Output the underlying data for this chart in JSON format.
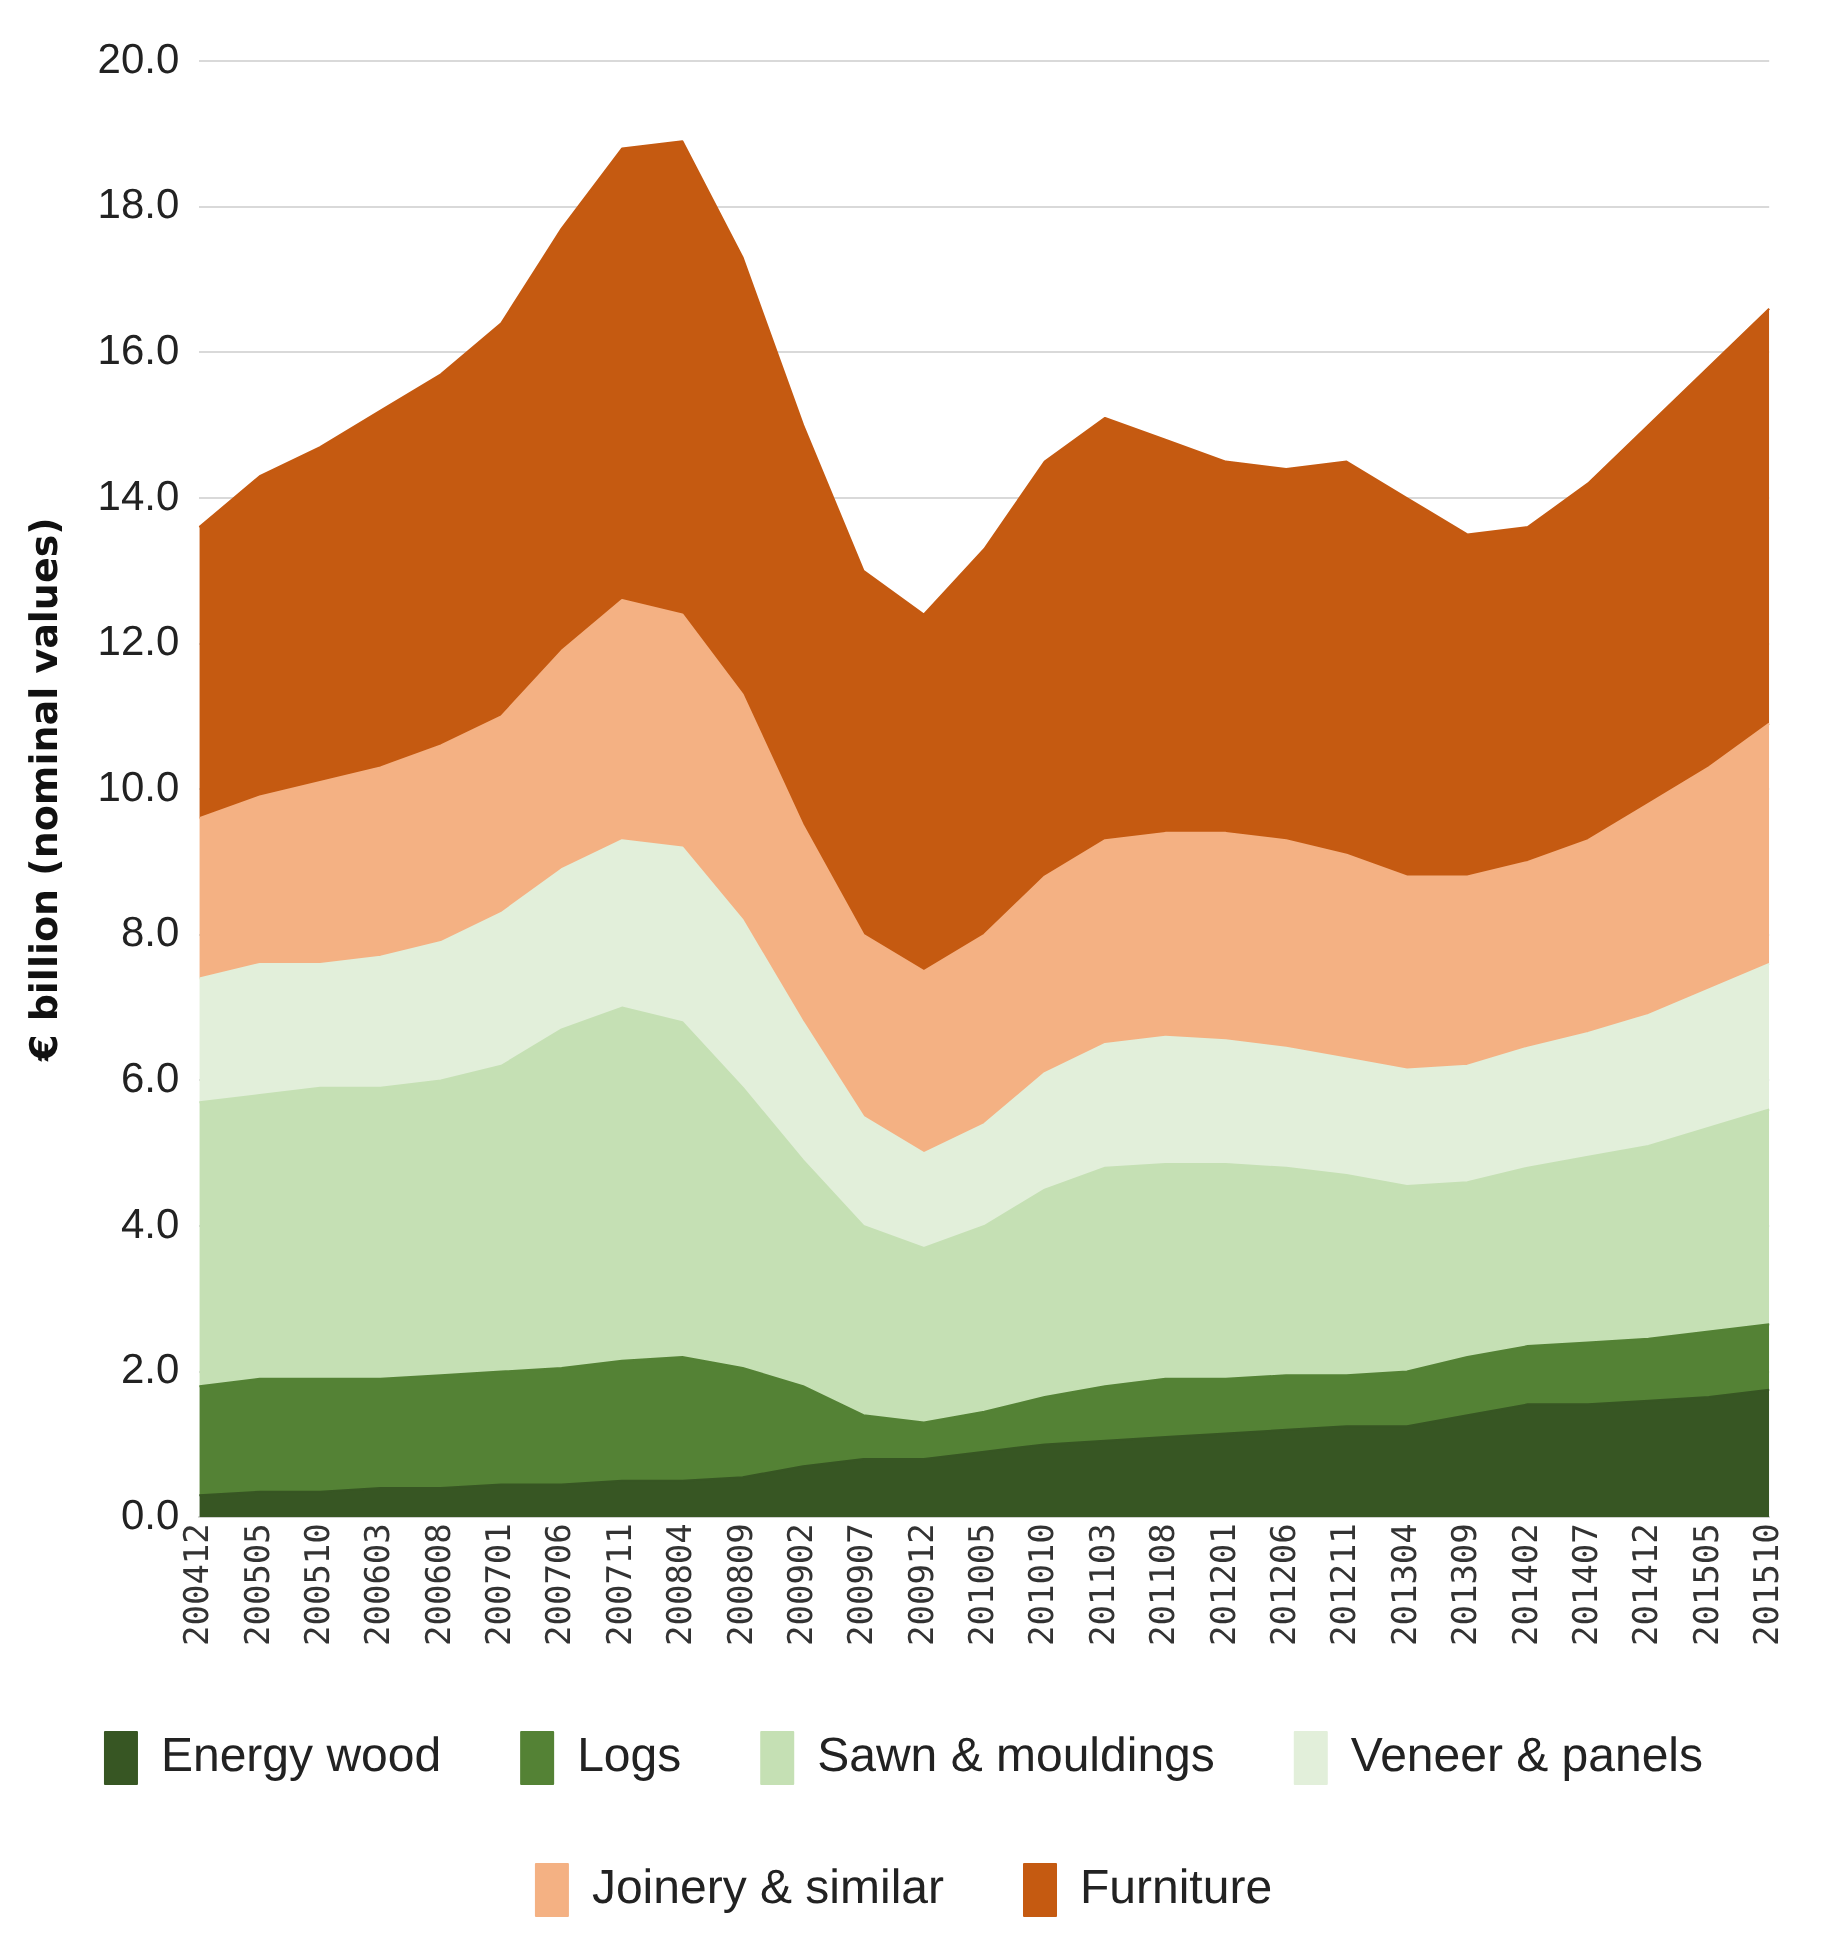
{
  "chart_data": {
    "type": "area",
    "stacked": true,
    "ylabel": "€ billion (nominal values)",
    "categories": [
      "200412",
      "200505",
      "200510",
      "200603",
      "200608",
      "200701",
      "200706",
      "200711",
      "200804",
      "200809",
      "200902",
      "200907",
      "200912",
      "201005",
      "201010",
      "201103",
      "201108",
      "201201",
      "201206",
      "201211",
      "201304",
      "201309",
      "201402",
      "201407",
      "201412",
      "201505",
      "201510"
    ],
    "ylim": [
      0,
      20
    ],
    "yticks": [
      {
        "value": 0,
        "label": "0.0"
      },
      {
        "value": 2,
        "label": "2.0"
      },
      {
        "value": 4,
        "label": "4.0"
      },
      {
        "value": 6,
        "label": "6.0"
      },
      {
        "value": 8,
        "label": "8.0"
      },
      {
        "value": 10,
        "label": "10.0"
      },
      {
        "value": 12,
        "label": "12.0"
      },
      {
        "value": 14,
        "label": "14.0"
      },
      {
        "value": 16,
        "label": "16.0"
      },
      {
        "value": 18,
        "label": "18.0"
      },
      {
        "value": 20,
        "label": "20.0"
      }
    ],
    "grid": "y",
    "legend": "bottom",
    "series": [
      {
        "name": "Energy wood",
        "color": "#375623",
        "values": [
          0.3,
          0.35,
          0.35,
          0.4,
          0.4,
          0.45,
          0.45,
          0.5,
          0.5,
          0.55,
          0.7,
          0.8,
          0.8,
          0.9,
          1.0,
          1.05,
          1.1,
          1.15,
          1.2,
          1.25,
          1.25,
          1.4,
          1.55,
          1.55,
          1.6,
          1.65,
          1.75
        ]
      },
      {
        "name": "Logs",
        "color": "#548235",
        "values": [
          1.5,
          1.55,
          1.55,
          1.5,
          1.55,
          1.55,
          1.6,
          1.65,
          1.7,
          1.5,
          1.1,
          0.6,
          0.5,
          0.55,
          0.65,
          0.75,
          0.8,
          0.75,
          0.75,
          0.7,
          0.75,
          0.8,
          0.8,
          0.85,
          0.85,
          0.9,
          0.9
        ]
      },
      {
        "name": "Sawn & mouldings",
        "color": "#c5e0b4",
        "values": [
          3.9,
          3.9,
          4.0,
          4.0,
          4.05,
          4.2,
          4.65,
          4.85,
          4.6,
          3.85,
          3.1,
          2.6,
          2.4,
          2.55,
          2.85,
          3.0,
          2.95,
          2.95,
          2.85,
          2.75,
          2.55,
          2.4,
          2.45,
          2.55,
          2.65,
          2.8,
          2.95
        ]
      },
      {
        "name": "Veneer & panels",
        "color": "#e2efda",
        "values": [
          1.7,
          1.8,
          1.7,
          1.8,
          1.9,
          2.1,
          2.2,
          2.3,
          2.4,
          2.3,
          1.9,
          1.5,
          1.3,
          1.4,
          1.6,
          1.7,
          1.75,
          1.7,
          1.65,
          1.6,
          1.6,
          1.6,
          1.65,
          1.7,
          1.8,
          1.9,
          2.0
        ]
      },
      {
        "name": "Joinery & similar",
        "color": "#f4b183",
        "values": [
          2.2,
          2.3,
          2.5,
          2.6,
          2.7,
          2.7,
          3.0,
          3.3,
          3.2,
          3.1,
          2.7,
          2.5,
          2.5,
          2.6,
          2.7,
          2.8,
          2.8,
          2.85,
          2.85,
          2.8,
          2.65,
          2.6,
          2.55,
          2.65,
          2.9,
          3.05,
          3.3
        ]
      },
      {
        "name": "Furniture",
        "color": "#c55a11",
        "values": [
          4.0,
          4.4,
          4.6,
          4.9,
          5.1,
          5.4,
          5.8,
          6.2,
          6.5,
          6.0,
          5.5,
          5.0,
          4.9,
          5.3,
          5.7,
          5.8,
          5.4,
          5.1,
          5.1,
          5.4,
          5.2,
          4.7,
          4.6,
          4.9,
          5.2,
          5.5,
          5.7
        ]
      }
    ]
  }
}
